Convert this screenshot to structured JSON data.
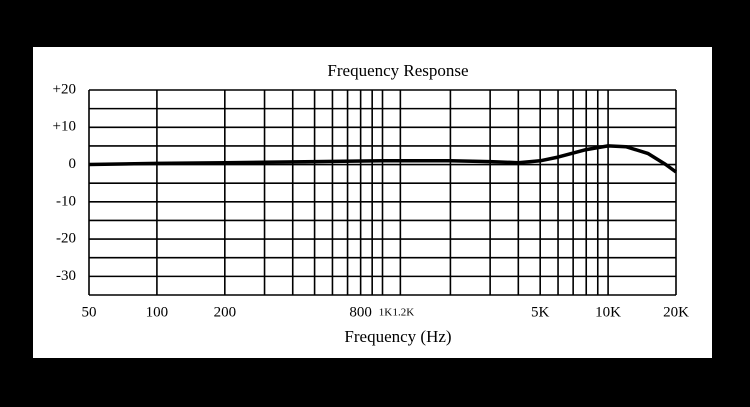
{
  "chart_data": {
    "type": "line",
    "title": "Frequency Response",
    "xlabel": "Frequency (Hz)",
    "x": [
      50,
      100,
      200,
      500,
      1000,
      2000,
      3000,
      4000,
      5000,
      6000,
      8000,
      10000,
      12000,
      15000,
      18000,
      20000
    ],
    "values": [
      0,
      0.3,
      0.5,
      0.8,
      1,
      1,
      0.8,
      0.5,
      1,
      2,
      4,
      5,
      4.8,
      3,
      0,
      -2
    ],
    "color": "#000000",
    "xscale": "log",
    "xlim": [
      50,
      20000
    ],
    "ylim": [
      -35,
      20
    ],
    "xticks": [
      50,
      100,
      200,
      800,
      {
        "value": 1000,
        "label": "1K"
      },
      {
        "value": 1200,
        "label": "1.2K"
      },
      {
        "value": 5000,
        "label": "5K"
      },
      {
        "value": 10000,
        "label": "10K"
      },
      {
        "value": 20000,
        "label": "20K"
      }
    ],
    "xgrid": [
      50,
      100,
      200,
      300,
      400,
      500,
      600,
      700,
      800,
      900,
      1000,
      1200,
      2000,
      3000,
      4000,
      5000,
      6000,
      7000,
      8000,
      9000,
      10000,
      20000
    ],
    "yticks": [
      {
        "value": 20,
        "label": "+20"
      },
      {
        "value": 10,
        "label": "+10"
      },
      0,
      -10,
      -20,
      -30
    ],
    "ygrid": [
      20,
      15,
      10,
      5,
      0,
      -5,
      -10,
      -15,
      -20,
      -25,
      -30,
      -35
    ],
    "grid": true
  }
}
